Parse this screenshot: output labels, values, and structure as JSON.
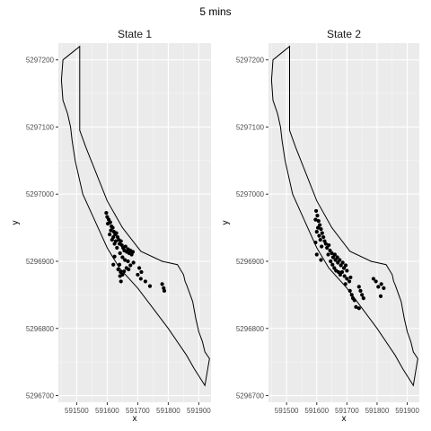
{
  "title": "5 mins",
  "chart_data": [
    {
      "type": "scatter",
      "title": "State 1",
      "xlabel": "x",
      "ylabel": "y",
      "xlim": [
        591440,
        591940
      ],
      "ylim": [
        5296690,
        5297225
      ],
      "xticks": [
        591500,
        591600,
        591700,
        591800,
        591900
      ],
      "yticks": [
        5296700,
        5296800,
        5296900,
        5297000,
        5297100,
        5297200
      ],
      "xtick_labels": [
        "591500",
        "591600",
        "591700",
        "591800",
        "591900"
      ],
      "ytick_labels": [
        "5296700",
        "5296800",
        "5296900",
        "5297000",
        "5297100",
        "5297200"
      ],
      "grid": true,
      "boundary": [
        [
          591455,
          5297200
        ],
        [
          591510,
          5297220
        ],
        [
          591510,
          5297095
        ],
        [
          591530,
          5297070
        ],
        [
          591600,
          5296990
        ],
        [
          591650,
          5296950
        ],
        [
          591710,
          5296915
        ],
        [
          591780,
          5296900
        ],
        [
          591830,
          5296895
        ],
        [
          591850,
          5296880
        ],
        [
          591855,
          5296870
        ],
        [
          591860,
          5296865
        ],
        [
          591880,
          5296840
        ],
        [
          591890,
          5296815
        ],
        [
          591900,
          5296795
        ],
        [
          591912,
          5296780
        ],
        [
          591920,
          5296765
        ],
        [
          591935,
          5296755
        ],
        [
          591920,
          5296715
        ],
        [
          591885,
          5296740
        ],
        [
          591860,
          5296760
        ],
        [
          591800,
          5296800
        ],
        [
          591750,
          5296830
        ],
        [
          591700,
          5296860
        ],
        [
          591640,
          5296890
        ],
        [
          591600,
          5296920
        ],
        [
          591560,
          5296960
        ],
        [
          591520,
          5297000
        ],
        [
          591495,
          5297050
        ],
        [
          591485,
          5297080
        ],
        [
          591480,
          5297100
        ],
        [
          591470,
          5297120
        ],
        [
          591455,
          5297140
        ],
        [
          591450,
          5297170
        ],
        [
          591455,
          5297200
        ]
      ],
      "points": [
        [
          591597,
          5296972
        ],
        [
          591600,
          5296966
        ],
        [
          591605,
          5296962
        ],
        [
          591602,
          5296956
        ],
        [
          591610,
          5296958
        ],
        [
          591614,
          5296952
        ],
        [
          591612,
          5296946
        ],
        [
          591618,
          5296950
        ],
        [
          591622,
          5296944
        ],
        [
          591626,
          5296940
        ],
        [
          591620,
          5296936
        ],
        [
          591630,
          5296942
        ],
        [
          591634,
          5296936
        ],
        [
          591638,
          5296932
        ],
        [
          591628,
          5296930
        ],
        [
          591640,
          5296926
        ],
        [
          591645,
          5296930
        ],
        [
          591648,
          5296924
        ],
        [
          591652,
          5296920
        ],
        [
          591656,
          5296916
        ],
        [
          591660,
          5296922
        ],
        [
          591664,
          5296914
        ],
        [
          591668,
          5296918
        ],
        [
          591672,
          5296912
        ],
        [
          591676,
          5296916
        ],
        [
          591680,
          5296910
        ],
        [
          591684,
          5296914
        ],
        [
          591608,
          5296940
        ],
        [
          591616,
          5296932
        ],
        [
          591624,
          5296926
        ],
        [
          591632,
          5296920
        ],
        [
          591642,
          5296912
        ],
        [
          591650,
          5296906
        ],
        [
          591658,
          5296902
        ],
        [
          591668,
          5296900
        ],
        [
          591676,
          5296894
        ],
        [
          591686,
          5296898
        ],
        [
          591640,
          5296895
        ],
        [
          591636,
          5296888
        ],
        [
          591644,
          5296884
        ],
        [
          591650,
          5296880
        ],
        [
          591642,
          5296878
        ],
        [
          591655,
          5296885
        ],
        [
          591663,
          5296890
        ],
        [
          591670,
          5296888
        ],
        [
          591645,
          5296870
        ],
        [
          591705,
          5296890
        ],
        [
          591712,
          5296884
        ],
        [
          591700,
          5296880
        ],
        [
          591710,
          5296874
        ],
        [
          591725,
          5296870
        ],
        [
          591740,
          5296863
        ],
        [
          591780,
          5296866
        ],
        [
          591785,
          5296860
        ],
        [
          591787,
          5296856
        ],
        [
          591620,
          5296895
        ],
        [
          591624,
          5296907
        ]
      ]
    },
    {
      "type": "scatter",
      "title": "State 2",
      "xlabel": "x",
      "ylabel": "y",
      "xlim": [
        591440,
        591940
      ],
      "ylim": [
        5296690,
        5297225
      ],
      "xticks": [
        591500,
        591600,
        591700,
        591800,
        591900
      ],
      "yticks": [
        5296700,
        5296800,
        5296900,
        5297000,
        5297100,
        5297200
      ],
      "xtick_labels": [
        "591500",
        "591600",
        "591700",
        "591800",
        "591900"
      ],
      "ytick_labels": [
        "5296700",
        "5296800",
        "5296900",
        "5297000",
        "5297100",
        "5297200"
      ],
      "grid": true,
      "boundary": [
        [
          591455,
          5297200
        ],
        [
          591510,
          5297220
        ],
        [
          591510,
          5297095
        ],
        [
          591530,
          5297070
        ],
        [
          591600,
          5296990
        ],
        [
          591650,
          5296950
        ],
        [
          591710,
          5296915
        ],
        [
          591780,
          5296900
        ],
        [
          591830,
          5296895
        ],
        [
          591850,
          5296880
        ],
        [
          591855,
          5296870
        ],
        [
          591860,
          5296865
        ],
        [
          591880,
          5296840
        ],
        [
          591890,
          5296815
        ],
        [
          591900,
          5296795
        ],
        [
          591912,
          5296780
        ],
        [
          591920,
          5296765
        ],
        [
          591935,
          5296755
        ],
        [
          591920,
          5296715
        ],
        [
          591885,
          5296740
        ],
        [
          591860,
          5296760
        ],
        [
          591800,
          5296800
        ],
        [
          591750,
          5296830
        ],
        [
          591700,
          5296860
        ],
        [
          591640,
          5296890
        ],
        [
          591600,
          5296920
        ],
        [
          591560,
          5296960
        ],
        [
          591520,
          5297000
        ],
        [
          591495,
          5297050
        ],
        [
          591485,
          5297080
        ],
        [
          591480,
          5297100
        ],
        [
          591470,
          5297120
        ],
        [
          591455,
          5297140
        ],
        [
          591450,
          5297170
        ],
        [
          591455,
          5297200
        ]
      ],
      "points": [
        [
          591598,
          5296975
        ],
        [
          591602,
          5296968
        ],
        [
          591596,
          5296962
        ],
        [
          591606,
          5296960
        ],
        [
          591610,
          5296954
        ],
        [
          591604,
          5296950
        ],
        [
          591614,
          5296948
        ],
        [
          591600,
          5296944
        ],
        [
          591618,
          5296942
        ],
        [
          591608,
          5296938
        ],
        [
          591622,
          5296936
        ],
        [
          591612,
          5296932
        ],
        [
          591626,
          5296930
        ],
        [
          591596,
          5296928
        ],
        [
          591630,
          5296926
        ],
        [
          591616,
          5296922
        ],
        [
          591634,
          5296920
        ],
        [
          591640,
          5296924
        ],
        [
          591644,
          5296916
        ],
        [
          591650,
          5296912
        ],
        [
          591638,
          5296910
        ],
        [
          591654,
          5296906
        ],
        [
          591660,
          5296910
        ],
        [
          591662,
          5296902
        ],
        [
          591668,
          5296906
        ],
        [
          591670,
          5296898
        ],
        [
          591676,
          5296902
        ],
        [
          591680,
          5296894
        ],
        [
          591686,
          5296898
        ],
        [
          591690,
          5296890
        ],
        [
          591696,
          5296894
        ],
        [
          591700,
          5296886
        ],
        [
          591646,
          5296900
        ],
        [
          591652,
          5296895
        ],
        [
          591658,
          5296890
        ],
        [
          591664,
          5296886
        ],
        [
          591672,
          5296884
        ],
        [
          591678,
          5296880
        ],
        [
          591684,
          5296884
        ],
        [
          591692,
          5296878
        ],
        [
          591700,
          5296874
        ],
        [
          591708,
          5296870
        ],
        [
          591712,
          5296876
        ],
        [
          591695,
          5296866
        ],
        [
          591710,
          5296856
        ],
        [
          591716,
          5296850
        ],
        [
          591720,
          5296845
        ],
        [
          591725,
          5296842
        ],
        [
          591740,
          5296862
        ],
        [
          591745,
          5296856
        ],
        [
          591750,
          5296850
        ],
        [
          591755,
          5296845
        ],
        [
          591730,
          5296832
        ],
        [
          591740,
          5296830
        ],
        [
          591788,
          5296874
        ],
        [
          591796,
          5296870
        ],
        [
          591804,
          5296862
        ],
        [
          591814,
          5296866
        ],
        [
          591822,
          5296860
        ],
        [
          591812,
          5296848
        ],
        [
          591600,
          5296910
        ],
        [
          591614,
          5296902
        ]
      ]
    }
  ]
}
